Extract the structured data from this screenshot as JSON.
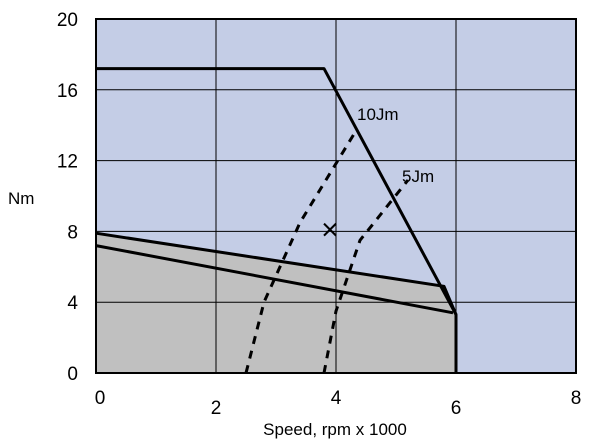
{
  "chart_data": {
    "type": "line",
    "title": "",
    "xlabel": "Speed, rpm x 1000",
    "ylabel": "Nm",
    "xlim": [
      0,
      8
    ],
    "ylim": [
      0,
      20
    ],
    "x_ticks": [
      0,
      2,
      4,
      6,
      8
    ],
    "y_ticks": [
      0,
      4,
      8,
      12,
      16,
      20
    ],
    "grid": true,
    "legend": "none",
    "colors": {
      "plot_background": "#c4cde6",
      "shaded_region": "#c0c0c0",
      "lines": "#000000"
    },
    "series": [
      {
        "style": "solid",
        "x": [
          0,
          3.8,
          6.0,
          6.0
        ],
        "y": [
          17.2,
          17.2,
          3.3,
          0
        ]
      },
      {
        "style": "solid",
        "x": [
          0,
          5.8,
          6.0
        ],
        "y": [
          7.9,
          4.9,
          3.3
        ]
      },
      {
        "style": "solid",
        "x": [
          0,
          5.95
        ],
        "y": [
          7.2,
          3.4
        ]
      },
      {
        "name": "10Jm",
        "style": "dashed",
        "x": [
          2.5,
          2.8,
          3.4,
          4.3
        ],
        "y": [
          0,
          4.0,
          8.5,
          13.5
        ]
      },
      {
        "name": "5Jm",
        "style": "dashed",
        "x": [
          3.8,
          4.0,
          4.4,
          5.2
        ],
        "y": [
          0,
          3.5,
          7.5,
          10.9
        ]
      }
    ],
    "marker": {
      "symbol": "x",
      "x": 3.9,
      "y": 8.1
    },
    "annotations": [
      {
        "text": "10Jm",
        "x": 4.35,
        "y": 14.3
      },
      {
        "text": "5Jm",
        "x": 5.1,
        "y": 10.8
      }
    ]
  }
}
